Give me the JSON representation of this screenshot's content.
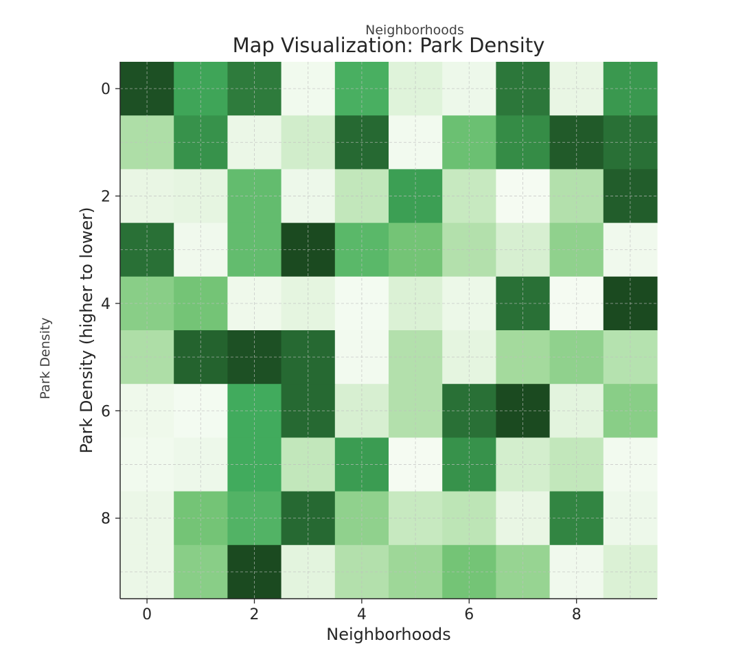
{
  "chart_data": {
    "type": "heatmap",
    "title": "Map Visualization: Park Density",
    "top_label": "Neighborhoods",
    "xlabel": "Neighborhoods",
    "ylabel": "Park Density (higher to lower)",
    "left_label": "Park Density",
    "x_ticks": [
      0,
      2,
      4,
      6,
      8
    ],
    "y_ticks": [
      0,
      2,
      4,
      6,
      8
    ],
    "rows": 10,
    "cols": 10,
    "grid": true,
    "colormap": "Greens",
    "colors": {
      "low": "#f7fcf5",
      "high": "#1b4a20",
      "grid": "#bfbfbf",
      "axis": "#262626"
    },
    "values": [
      [
        0.98,
        0.72,
        0.85,
        0.05,
        0.68,
        0.18,
        0.08,
        0.86,
        0.12,
        0.76
      ],
      [
        0.4,
        0.78,
        0.1,
        0.25,
        0.9,
        0.04,
        0.6,
        0.8,
        0.95,
        0.88
      ],
      [
        0.12,
        0.14,
        0.62,
        0.08,
        0.32,
        0.74,
        0.3,
        0.02,
        0.38,
        0.94
      ],
      [
        0.88,
        0.06,
        0.62,
        1.0,
        0.64,
        0.58,
        0.38,
        0.22,
        0.5,
        0.06
      ],
      [
        0.52,
        0.58,
        0.07,
        0.15,
        0.03,
        0.2,
        0.09,
        0.88,
        0.02,
        1.0
      ],
      [
        0.4,
        0.92,
        0.98,
        0.9,
        0.04,
        0.38,
        0.15,
        0.44,
        0.5,
        0.37
      ],
      [
        0.07,
        0.03,
        0.7,
        0.9,
        0.22,
        0.38,
        0.88,
        1.0,
        0.16,
        0.52
      ],
      [
        0.05,
        0.08,
        0.7,
        0.32,
        0.75,
        0.02,
        0.78,
        0.24,
        0.32,
        0.04
      ],
      [
        0.1,
        0.58,
        0.66,
        0.9,
        0.5,
        0.3,
        0.34,
        0.12,
        0.82,
        0.08
      ],
      [
        0.1,
        0.52,
        1.0,
        0.16,
        0.38,
        0.46,
        0.58,
        0.48,
        0.06,
        0.2
      ]
    ]
  }
}
